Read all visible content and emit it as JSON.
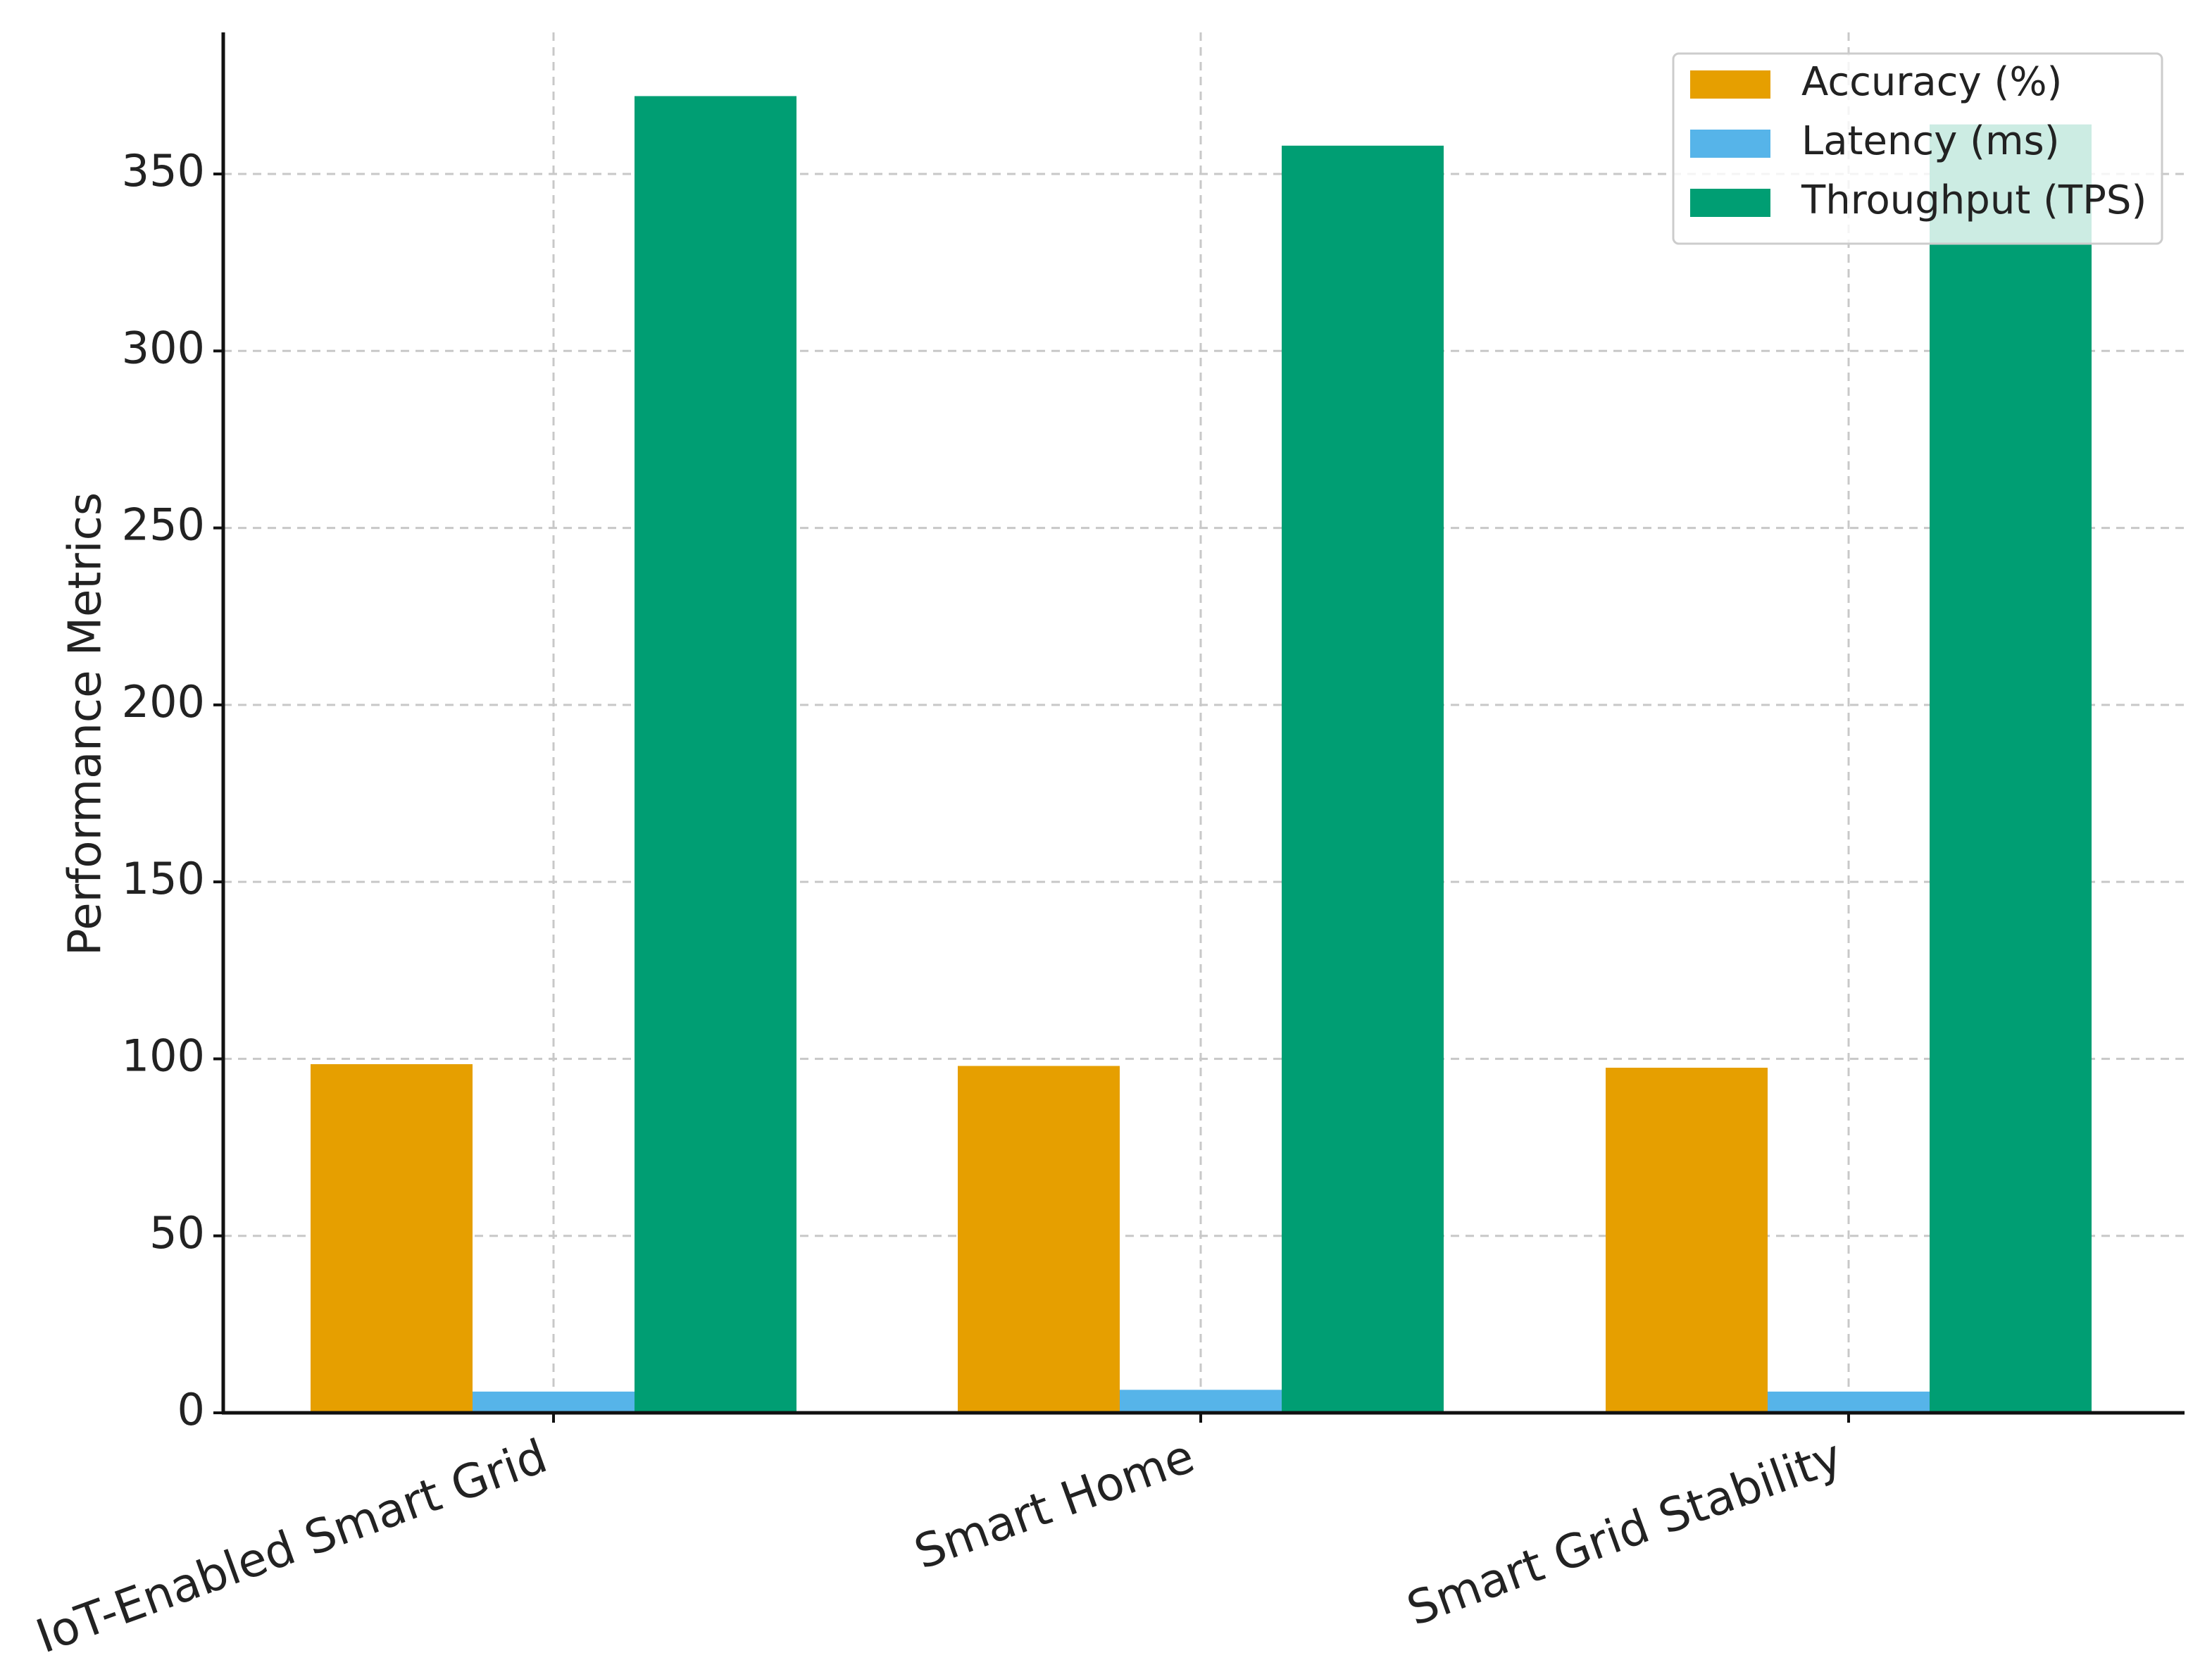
{
  "chart_data": {
    "type": "bar",
    "title": "",
    "xlabel": "",
    "ylabel": "Performance Metrics",
    "categories": [
      "IoT-Enabled Smart Grid",
      "Smart Home",
      "Smart Grid Stability"
    ],
    "series": [
      {
        "name": "Accuracy (%)",
        "color": "#E69F00",
        "values": [
          98.5,
          98.0,
          97.5
        ]
      },
      {
        "name": "Latency (ms)",
        "color": "#56B4E9",
        "values": [
          6.0,
          6.5,
          6.0
        ]
      },
      {
        "name": "Throughput (TPS)",
        "color": "#009E73",
        "values": [
          372,
          358,
          364
        ]
      }
    ],
    "ylim": [
      0,
      390
    ],
    "yticks": [
      0,
      50,
      100,
      150,
      200,
      250,
      300,
      350
    ],
    "grid": true,
    "legend_position": "top-right"
  }
}
